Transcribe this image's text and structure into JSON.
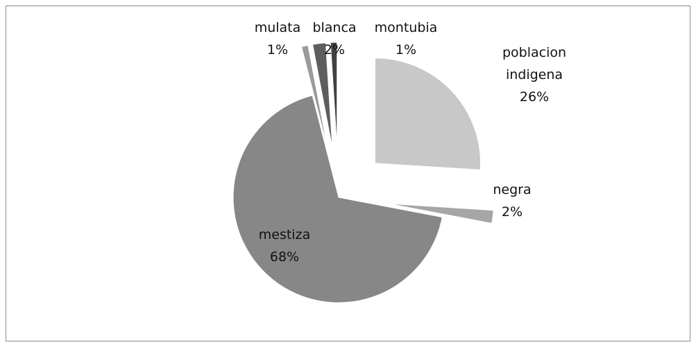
{
  "chart_data": {
    "type": "pie",
    "categories": [
      "poblacion indigena",
      "negra",
      "mestiza",
      "mulata",
      "blanca",
      "montubia"
    ],
    "values": [
      26,
      2,
      68,
      1,
      2,
      1
    ],
    "value_labels": [
      "26%",
      "2%",
      "68%",
      "1%",
      "2%",
      "1%"
    ],
    "colors": [
      "#c8c8c8",
      "#a6a6a6",
      "#878787",
      "#9a9a9a",
      "#5e5e5e",
      "#424242"
    ]
  }
}
